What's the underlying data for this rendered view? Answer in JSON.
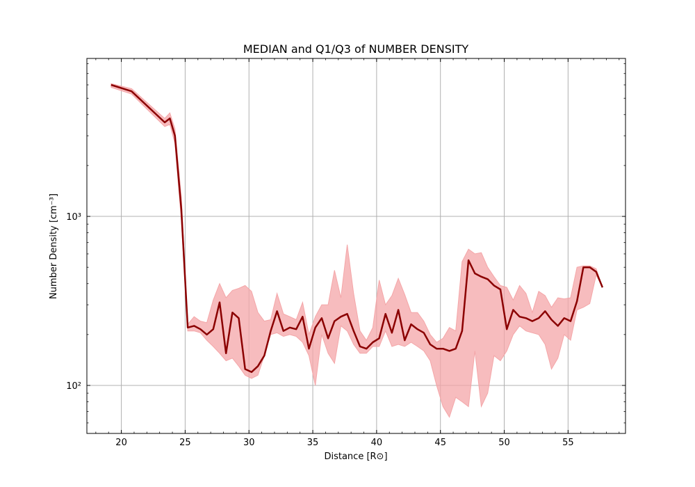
{
  "chart_data": {
    "type": "line",
    "title": "MEDIAN and Q1/Q3 of NUMBER DENSITY",
    "xlabel": "Distance [R⊙]",
    "ylabel": "Number Density [cm⁻³]",
    "xlim": [
      17.3,
      59.5
    ],
    "ylim": [
      52,
      8600
    ],
    "yscale": "log",
    "grid": true,
    "x_ticks": [
      20,
      25,
      30,
      35,
      40,
      45,
      50,
      55
    ],
    "x_tick_labels": [
      "20",
      "25",
      "30",
      "35",
      "40",
      "45",
      "50",
      "55"
    ],
    "y_ticks": [
      100,
      1000
    ],
    "y_tick_labels": [
      "10²",
      "10³"
    ],
    "colors": {
      "median": "#8b0000",
      "band": "#f4a6a8"
    },
    "series": [
      {
        "role": "median",
        "x": [
          19.2,
          20.8,
          23.4,
          23.8,
          24.2,
          24.7,
          25.2,
          25.7,
          26.2,
          26.7,
          27.2,
          27.7,
          28.2,
          28.7,
          29.2,
          29.7,
          30.2,
          30.7,
          31.2,
          31.7,
          32.2,
          32.7,
          33.2,
          33.7,
          34.2,
          34.7,
          35.2,
          35.7,
          36.2,
          36.7,
          37.2,
          37.7,
          38.2,
          38.7,
          39.2,
          39.7,
          40.2,
          40.7,
          41.2,
          41.7,
          42.2,
          42.7,
          43.2,
          43.7,
          44.2,
          44.7,
          45.2,
          45.7,
          46.2,
          46.7,
          47.2,
          47.7,
          48.2,
          48.7,
          49.2,
          49.7,
          50.2,
          50.7,
          51.2,
          51.7,
          52.2,
          52.7,
          53.2,
          53.7,
          54.2,
          54.7,
          55.2,
          55.7,
          56.2,
          56.7,
          57.2,
          57.7
        ],
        "y": [
          6000,
          5500,
          3600,
          3800,
          3000,
          1100,
          220,
          225,
          215,
          200,
          215,
          310,
          155,
          270,
          250,
          125,
          120,
          130,
          150,
          210,
          275,
          210,
          220,
          215,
          255,
          165,
          220,
          250,
          190,
          240,
          255,
          265,
          210,
          170,
          165,
          180,
          190,
          265,
          205,
          280,
          185,
          230,
          215,
          205,
          175,
          165,
          165,
          160,
          165,
          210,
          550,
          460,
          440,
          425,
          390,
          370,
          215,
          280,
          255,
          250,
          240,
          250,
          275,
          245,
          225,
          250,
          240,
          315,
          500,
          500,
          470,
          380
        ]
      },
      {
        "role": "q3",
        "x": [
          19.2,
          20.8,
          23.4,
          23.8,
          24.2,
          24.7,
          25.2,
          25.7,
          26.2,
          26.7,
          27.2,
          27.7,
          28.2,
          28.7,
          29.2,
          29.7,
          30.2,
          30.7,
          31.2,
          31.7,
          32.2,
          32.7,
          33.2,
          33.7,
          34.2,
          34.7,
          35.2,
          35.7,
          36.2,
          36.7,
          37.2,
          37.7,
          38.2,
          38.7,
          39.2,
          39.7,
          40.2,
          40.7,
          41.2,
          41.7,
          42.2,
          42.7,
          43.2,
          43.7,
          44.2,
          44.7,
          45.2,
          45.7,
          46.2,
          46.7,
          47.2,
          47.7,
          48.2,
          48.7,
          49.2,
          49.7,
          50.2,
          50.7,
          51.2,
          51.7,
          52.2,
          52.7,
          53.2,
          53.7,
          54.2,
          54.7,
          55.2,
          55.7,
          56.2,
          56.7,
          57.2,
          57.7
        ],
        "y": [
          6100,
          5700,
          3800,
          4100,
          3300,
          1300,
          230,
          255,
          240,
          235,
          320,
          400,
          330,
          365,
          375,
          390,
          360,
          270,
          240,
          245,
          350,
          265,
          255,
          245,
          310,
          200,
          255,
          300,
          300,
          480,
          330,
          680,
          350,
          210,
          185,
          220,
          420,
          300,
          340,
          430,
          345,
          270,
          270,
          240,
          200,
          180,
          190,
          220,
          210,
          540,
          640,
          600,
          610,
          500,
          440,
          390,
          380,
          320,
          390,
          350,
          270,
          360,
          340,
          290,
          330,
          325,
          330,
          500,
          510,
          510,
          490,
          380
        ]
      },
      {
        "role": "q1",
        "x": [
          19.2,
          20.8,
          23.4,
          23.8,
          24.2,
          24.7,
          25.2,
          25.7,
          26.2,
          26.7,
          27.2,
          27.7,
          28.2,
          28.7,
          29.2,
          29.7,
          30.2,
          30.7,
          31.2,
          31.7,
          32.2,
          32.7,
          33.2,
          33.7,
          34.2,
          34.7,
          35.2,
          35.7,
          36.2,
          36.7,
          37.2,
          37.7,
          38.2,
          38.7,
          39.2,
          39.7,
          40.2,
          40.7,
          41.2,
          41.7,
          42.2,
          42.7,
          43.2,
          43.7,
          44.2,
          44.7,
          45.2,
          45.7,
          46.2,
          46.7,
          47.2,
          47.7,
          48.2,
          48.7,
          49.2,
          49.7,
          50.2,
          50.7,
          51.2,
          51.7,
          52.2,
          52.7,
          53.2,
          53.7,
          54.2,
          54.7,
          55.2,
          55.7,
          56.2,
          56.7,
          57.2,
          57.7
        ],
        "y": [
          5800,
          5300,
          3400,
          3500,
          2700,
          950,
          210,
          210,
          205,
          185,
          170,
          155,
          140,
          145,
          130,
          115,
          110,
          115,
          150,
          200,
          205,
          195,
          200,
          195,
          180,
          150,
          100,
          200,
          155,
          135,
          225,
          210,
          175,
          155,
          155,
          170,
          170,
          210,
          170,
          175,
          170,
          180,
          170,
          160,
          140,
          100,
          75,
          65,
          85,
          80,
          75,
          160,
          75,
          90,
          150,
          140,
          160,
          200,
          225,
          210,
          205,
          200,
          175,
          125,
          145,
          200,
          185,
          280,
          290,
          305,
          450,
          380
        ]
      }
    ]
  }
}
